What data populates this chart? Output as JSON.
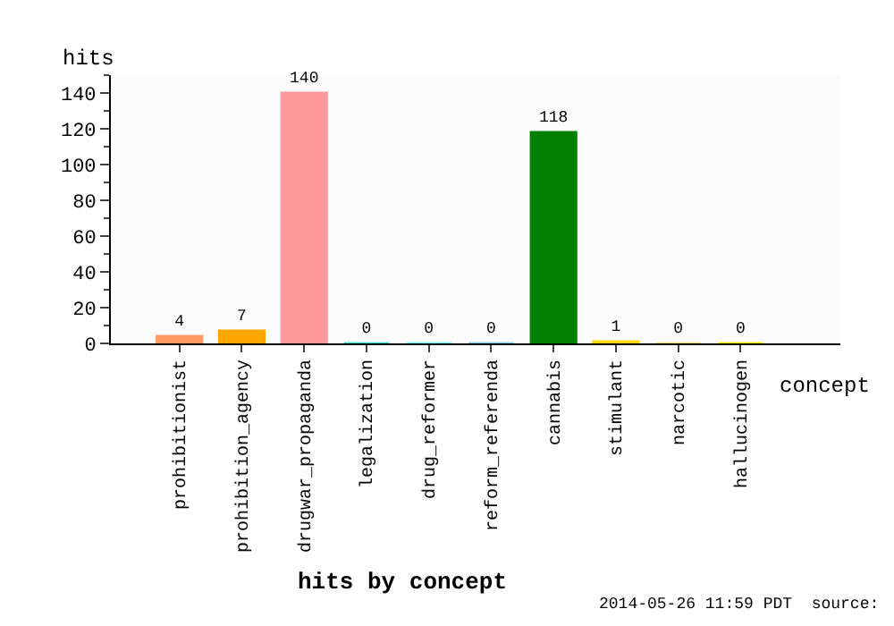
{
  "chart_data": {
    "type": "bar",
    "title": "hits by concept",
    "xlabel": "concept",
    "ylabel": "hits",
    "categories": [
      "prohibitionist",
      "prohibition_agency",
      "drugwar_propaganda",
      "legalization",
      "drug_reformer",
      "reform_referenda",
      "cannabis",
      "stimulant",
      "narcotic",
      "hallucinogen"
    ],
    "values": [
      4,
      7,
      140,
      0,
      0,
      0,
      118,
      1,
      0,
      0
    ],
    "colors": [
      "#ff9966",
      "#ffa500",
      "#ff9999",
      "#40e0d0",
      "#80ffff",
      "#87ceeb",
      "#008000",
      "#ffd700",
      "#f0e68c",
      "#ffff00"
    ],
    "ylim": [
      0,
      150
    ],
    "yticks": [
      0,
      20,
      40,
      60,
      80,
      100,
      120,
      140
    ],
    "data_labels": true,
    "legend": false,
    "annotations": [
      "2014-05-26 11:59 PDT  source:"
    ]
  }
}
